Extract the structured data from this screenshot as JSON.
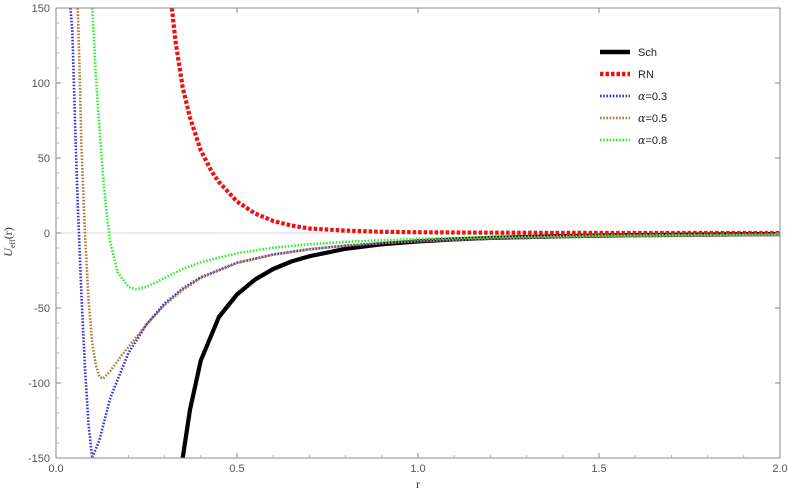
{
  "chart_data": {
    "type": "line",
    "title": "",
    "xlabel": "r",
    "ylabel_main": "U",
    "ylabel_sub": "eff",
    "ylabel_arg": "(r)",
    "xlim": [
      0,
      2.0
    ],
    "ylim": [
      -150,
      150
    ],
    "xticks": [
      0.0,
      0.5,
      1.0,
      1.5,
      2.0
    ],
    "xtick_labels": [
      "0.0",
      "0.5",
      "1.0",
      "1.5",
      "2.0"
    ],
    "yticks": [
      -150,
      -100,
      -50,
      0,
      50,
      100,
      150
    ],
    "ytick_labels": [
      "-150",
      "-100",
      "-50",
      "0",
      "50",
      "100",
      "150"
    ],
    "grid": false,
    "legend_position": "top-right",
    "series": [
      {
        "name": "Sch",
        "color": "#000000",
        "style": "solid",
        "x": [
          0.35,
          0.37,
          0.4,
          0.45,
          0.5,
          0.55,
          0.6,
          0.65,
          0.7,
          0.8,
          0.9,
          1.0,
          1.1,
          1.2,
          1.4,
          1.6,
          1.8,
          2.0
        ],
        "y": [
          -150,
          -118,
          -85,
          -56,
          -41,
          -31,
          -24,
          -19,
          -15.5,
          -10.5,
          -7.5,
          -5.6,
          -4.3,
          -3.3,
          -2.1,
          -1.4,
          -1.0,
          -0.7
        ]
      },
      {
        "name": "RN",
        "color": "#ee1111",
        "style": "dotted",
        "x": [
          0.32,
          0.33,
          0.35,
          0.37,
          0.4,
          0.43,
          0.45,
          0.5,
          0.55,
          0.6,
          0.65,
          0.7,
          0.8,
          0.9,
          1.0,
          1.2,
          1.5,
          2.0
        ],
        "y": [
          150,
          128,
          97,
          77,
          55,
          41,
          34,
          21,
          13,
          8,
          5,
          3,
          1.6,
          0.8,
          0.5,
          0.2,
          0.05,
          0
        ]
      },
      {
        "name": "α=0.3",
        "label_prefix": "α",
        "label_rest": "=0.3",
        "color": "#3333dd",
        "style": "dotted",
        "x": [
          0.04,
          0.045,
          0.05,
          0.055,
          0.06,
          0.07,
          0.08,
          0.09,
          0.1,
          0.12,
          0.15,
          0.2,
          0.25,
          0.3,
          0.35,
          0.4,
          0.5,
          0.6,
          0.7,
          0.8,
          0.9,
          1.0,
          1.2,
          1.5,
          2.0
        ],
        "y": [
          150,
          135,
          95,
          55,
          20,
          -40,
          -90,
          -128,
          -150,
          -138,
          -110,
          -80,
          -61,
          -47,
          -37,
          -29.5,
          -19.8,
          -14.3,
          -10.8,
          -8.4,
          -6.7,
          -5.4,
          -3.7,
          -2.3,
          -1.3
        ]
      },
      {
        "name": "α=0.5",
        "label_prefix": "α",
        "label_rest": "=0.5",
        "color": "#b07a3a",
        "style": "dotted",
        "x": [
          0.06,
          0.065,
          0.07,
          0.08,
          0.09,
          0.1,
          0.11,
          0.12,
          0.13,
          0.15,
          0.18,
          0.2,
          0.25,
          0.3,
          0.35,
          0.4,
          0.5,
          0.6,
          0.7,
          0.8,
          0.9,
          1.0,
          1.2,
          1.5,
          2.0
        ],
        "y": [
          150,
          110,
          60,
          0,
          -45,
          -73,
          -88,
          -96,
          -97,
          -92,
          -82,
          -76,
          -61,
          -48,
          -38,
          -30,
          -20,
          -14.5,
          -10.9,
          -8.5,
          -6.8,
          -5.5,
          -3.8,
          -2.3,
          -1.3
        ]
      },
      {
        "name": "α=0.8",
        "label_prefix": "α",
        "label_rest": "=0.8",
        "color": "#33ee33",
        "style": "dotted",
        "x": [
          0.1,
          0.105,
          0.11,
          0.12,
          0.13,
          0.14,
          0.15,
          0.17,
          0.2,
          0.22,
          0.25,
          0.3,
          0.35,
          0.4,
          0.5,
          0.6,
          0.7,
          0.8,
          0.9,
          1.0,
          1.2,
          1.5,
          2.0
        ],
        "y": [
          150,
          130,
          105,
          70,
          38,
          12,
          -6,
          -26,
          -36,
          -37.5,
          -36,
          -30,
          -24,
          -19.5,
          -13.5,
          -9.8,
          -7.5,
          -5.9,
          -4.8,
          -4,
          -2.8,
          -1.8,
          -1
        ]
      }
    ]
  }
}
